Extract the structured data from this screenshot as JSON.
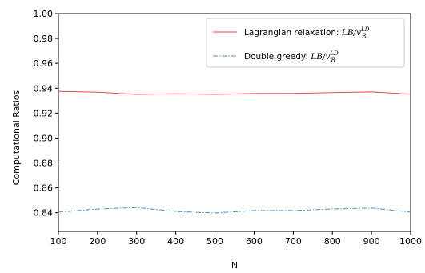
{
  "chart_data": {
    "type": "line",
    "title": "",
    "xlabel": "N",
    "ylabel": "Computational Ratios",
    "xlim": [
      100,
      1000
    ],
    "ylim": [
      0.825,
      1.0
    ],
    "xticks": [
      100,
      200,
      300,
      400,
      500,
      600,
      700,
      800,
      900,
      1000
    ],
    "yticks": [
      "0.84",
      "0.86",
      "0.88",
      "0.90",
      "0.92",
      "0.94",
      "0.96",
      "0.98",
      "1.00"
    ],
    "x": [
      100,
      200,
      300,
      400,
      500,
      600,
      700,
      800,
      900,
      1000
    ],
    "legend_position": "top-right",
    "grid": false,
    "series": [
      {
        "name_text": "Lagrangian relaxation: ",
        "name_math": "LB/v",
        "name_sup": "LD",
        "name_sub": "R",
        "color": "#e8474a",
        "style": "solid",
        "values": [
          0.9375,
          0.9368,
          0.935,
          0.9355,
          0.935,
          0.9357,
          0.9358,
          0.9365,
          0.937,
          0.9352
        ]
      },
      {
        "name_text": "Double greedy: ",
        "name_math": "LB/v",
        "name_sup": "LD",
        "name_sub": "R",
        "color": "#4a90c8",
        "style": "dashdot",
        "values": [
          0.8405,
          0.843,
          0.8442,
          0.841,
          0.8398,
          0.8418,
          0.8418,
          0.843,
          0.8438,
          0.8405
        ]
      }
    ]
  }
}
